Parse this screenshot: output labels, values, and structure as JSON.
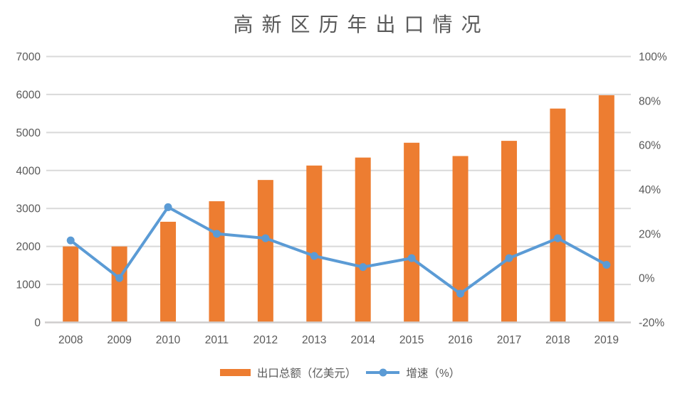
{
  "title": "高新区历年出口情况",
  "legend": {
    "bar_label": "出口总额（亿美元）",
    "line_label": "增速（%）"
  },
  "colors": {
    "bar": "#ED7D31",
    "line": "#5B9BD5",
    "grid": "#D9D9D9",
    "axis": "#CFCDCD",
    "tick_text": "#595959",
    "title_text": "#595959"
  },
  "chart_data": {
    "type": "combo-bar-line",
    "title": "高新区历年出口情况",
    "categories": [
      "2008",
      "2009",
      "2010",
      "2011",
      "2012",
      "2013",
      "2014",
      "2015",
      "2016",
      "2017",
      "2018",
      "2019"
    ],
    "series": [
      {
        "name": "出口总额（亿美元）",
        "type": "bar",
        "axis": "left",
        "color": "#ED7D31",
        "values": [
          2000,
          2000,
          2650,
          3190,
          3750,
          4130,
          4340,
          4730,
          4380,
          4780,
          5630,
          5980
        ]
      },
      {
        "name": "增速（%）",
        "type": "line",
        "axis": "right",
        "color": "#5B9BD5",
        "values": [
          17,
          0,
          32,
          20,
          18,
          10,
          5,
          9,
          -7,
          9,
          18,
          6
        ]
      }
    ],
    "left_axis": {
      "min": 0,
      "max": 7000,
      "step": 1000,
      "tick_labels": [
        "0",
        "1000",
        "2000",
        "3000",
        "4000",
        "5000",
        "6000",
        "7000"
      ]
    },
    "right_axis": {
      "min": -20,
      "max": 100,
      "step": 20,
      "tick_labels": [
        "-20%",
        "0%",
        "20%",
        "40%",
        "60%",
        "80%",
        "100%"
      ]
    },
    "grid": true,
    "legend_position": "bottom"
  }
}
